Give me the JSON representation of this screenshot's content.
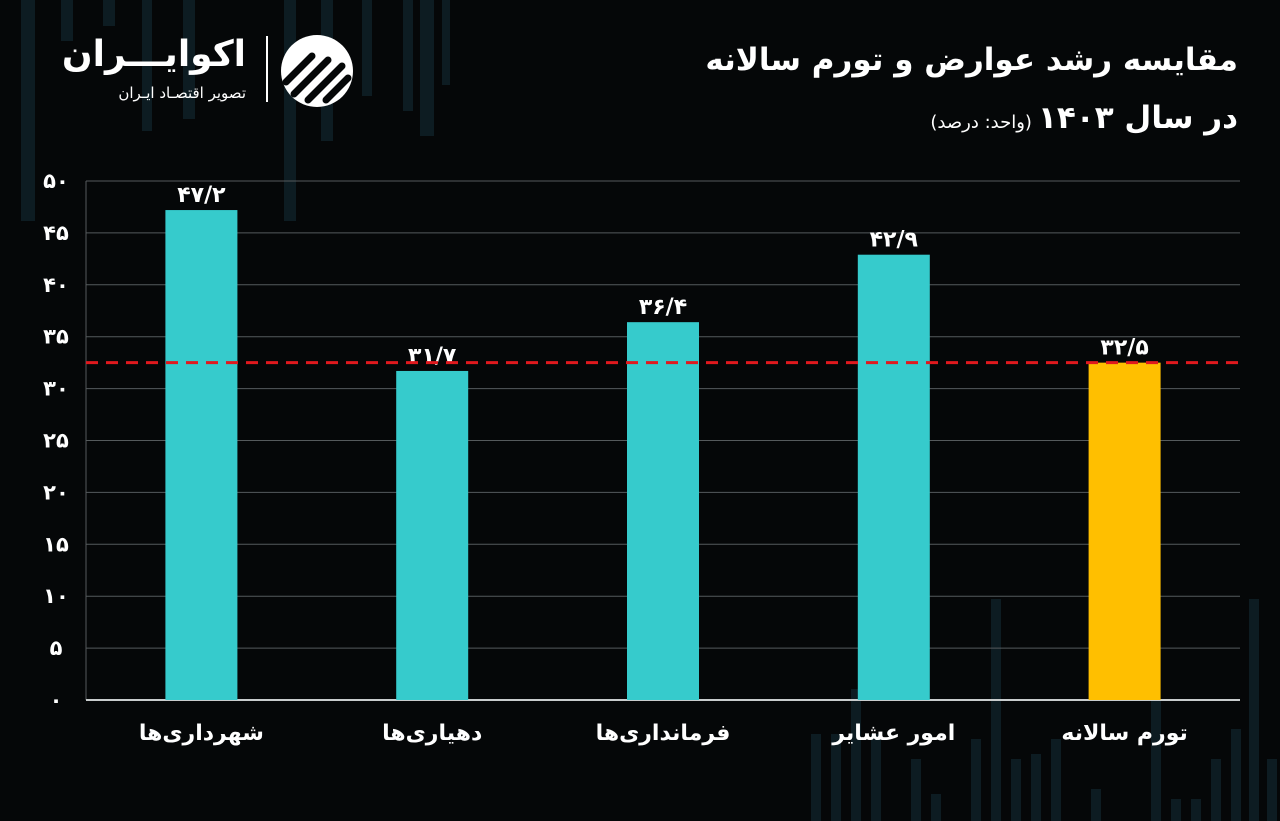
{
  "brand": {
    "name": "اکوایـــران",
    "tagline": "تصویر اقتصـاد ایـران"
  },
  "colors": {
    "background": "#050708",
    "bar": "#36CBCC",
    "highlight_bar": "#FFBF00",
    "reference_line": "#E0191E",
    "grid": "#555a5c",
    "text": "#ffffff"
  },
  "chart_data": {
    "type": "bar",
    "title": "مقایسه رشد عوارض و تورم سالانه",
    "subtitle": "در سال ۱۴۰۳",
    "unit_note": "(واحد: درصد)",
    "categories": [
      "شهرداری‌ها",
      "دهیاری‌ها",
      "فرمانداری‌ها",
      "امور عشایر",
      "تورم سالانه"
    ],
    "values": [
      47.2,
      31.7,
      36.4,
      42.9,
      32.5
    ],
    "value_labels": [
      "۴۷/۲",
      "۳۱/۷",
      "۳۶/۴",
      "۴۲/۹",
      "۳۲/۵"
    ],
    "highlight_index": 4,
    "reference_line": {
      "value": 32.5,
      "style": "dashed"
    },
    "ylim": [
      0,
      50
    ],
    "yticks": [
      0,
      5,
      10,
      15,
      20,
      25,
      30,
      35,
      40,
      45,
      50
    ],
    "ytick_labels": [
      "۰",
      "۵",
      "۱۰",
      "۱۵",
      "۲۰",
      "۲۵",
      "۳۰",
      "۳۵",
      "۴۰",
      "۴۵",
      "۵۰"
    ],
    "grid": true,
    "legend": "none"
  }
}
